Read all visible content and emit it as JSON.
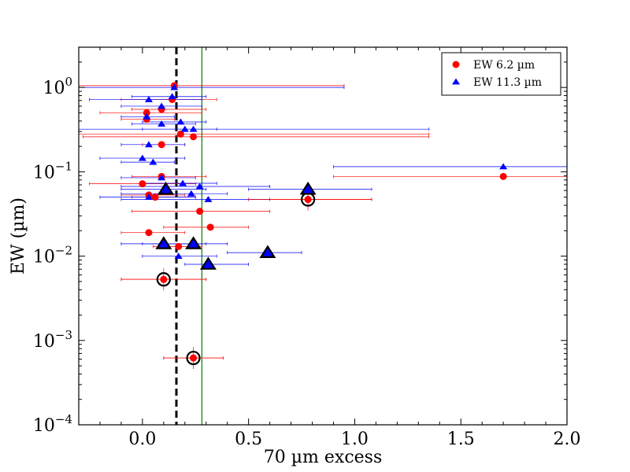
{
  "chart_data": {
    "type": "scatter",
    "title": "",
    "xlabel": "70 µm excess",
    "ylabel": "EW (µm)",
    "xlim": [
      -0.3,
      2.0
    ],
    "ylim": [
      0.0001,
      3.0
    ],
    "yscale": "log",
    "x_ticks": [
      "0.0",
      "0.5",
      "1.0",
      "1.5",
      "2.0"
    ],
    "x_tick_values": [
      0.0,
      0.5,
      1.0,
      1.5,
      2.0
    ],
    "y_ticks": [
      {
        "value": 0.0001,
        "base": "10",
        "exp": "−4"
      },
      {
        "value": 0.001,
        "base": "10",
        "exp": "−3"
      },
      {
        "value": 0.01,
        "base": "10",
        "exp": "−2"
      },
      {
        "value": 0.1,
        "base": "10",
        "exp": "−1"
      },
      {
        "value": 1,
        "base": "10",
        "exp": "0"
      }
    ],
    "vlines": [
      {
        "x": 0.16,
        "color": "#000000",
        "style": "dashed"
      },
      {
        "x": 0.28,
        "color": "#008000",
        "style": "solid"
      }
    ],
    "legend_position": "top-right",
    "series": [
      {
        "name": "EW 6.2 µm",
        "marker": "circle",
        "color": "#ff0000",
        "errcolor": "#ff0000",
        "points": [
          {
            "x": 0.15,
            "y": 1.05,
            "xlo": -0.3,
            "xhi": 0.95
          },
          {
            "x": 0.14,
            "y": 0.72,
            "xlo": -0.1,
            "xhi": 0.35
          },
          {
            "x": 0.02,
            "y": 0.5,
            "xlo": -0.2,
            "xhi": 0.28
          },
          {
            "x": 0.09,
            "y": 0.55,
            "xlo": -0.05,
            "xhi": 0.3
          },
          {
            "x": 0.02,
            "y": 0.42,
            "xlo": -0.1,
            "xhi": 0.15
          },
          {
            "x": 0.18,
            "y": 0.28,
            "xlo": -0.3,
            "xhi": 1.35
          },
          {
            "x": 0.24,
            "y": 0.26,
            "xlo": -0.28,
            "xhi": 1.35
          },
          {
            "x": 0.09,
            "y": 0.21,
            "xlo": 0.0,
            "xhi": 0.2
          },
          {
            "x": 0.09,
            "y": 0.088,
            "xlo": -0.05,
            "xhi": 0.3
          },
          {
            "x": 1.7,
            "y": 0.088,
            "xlo": 0.9,
            "xhi": 2.1
          },
          {
            "x": 0.0,
            "y": 0.072,
            "xlo": -0.25,
            "xhi": 0.25
          },
          {
            "x": 0.03,
            "y": 0.053,
            "xlo": -0.1,
            "xhi": 0.2
          },
          {
            "x": 0.06,
            "y": 0.05,
            "xlo": -0.05,
            "xhi": 0.25
          },
          {
            "x": 0.78,
            "y": 0.047,
            "xlo": 0.5,
            "xhi": 1.08
          },
          {
            "x": 0.27,
            "y": 0.034,
            "xlo": -0.05,
            "xhi": 0.6
          },
          {
            "x": 0.32,
            "y": 0.022,
            "xlo": 0.1,
            "xhi": 0.5
          },
          {
            "x": 0.03,
            "y": 0.019,
            "xlo": -0.1,
            "xhi": 0.2
          },
          {
            "x": 0.17,
            "y": 0.013,
            "xlo": 0.05,
            "xhi": 0.28
          },
          {
            "x": 0.1,
            "y": 0.0053,
            "xlo": -0.1,
            "xhi": 0.3
          },
          {
            "x": 0.24,
            "y": 0.00062,
            "xlo": 0.1,
            "xhi": 0.38
          }
        ]
      },
      {
        "name": "EW 11.3 µm",
        "marker": "triangle",
        "color": "#0000ff",
        "errcolor": "#0000ff",
        "points": [
          {
            "x": 0.15,
            "y": 1.0,
            "xlo": -0.3,
            "xhi": 0.95
          },
          {
            "x": 0.03,
            "y": 0.72,
            "xlo": -0.25,
            "xhi": 0.28
          },
          {
            "x": 0.14,
            "y": 0.78,
            "xlo": -0.05,
            "xhi": 0.3
          },
          {
            "x": 0.09,
            "y": 0.6,
            "xlo": -0.1,
            "xhi": 0.28
          },
          {
            "x": 0.02,
            "y": 0.45,
            "xlo": -0.1,
            "xhi": 0.15
          },
          {
            "x": 0.09,
            "y": 0.37,
            "xlo": -0.05,
            "xhi": 0.25
          },
          {
            "x": 0.18,
            "y": 0.39,
            "xlo": 0.0,
            "xhi": 0.3
          },
          {
            "x": 0.2,
            "y": 0.32,
            "xlo": 0.0,
            "xhi": 0.35
          },
          {
            "x": 0.24,
            "y": 0.32,
            "xlo": -0.3,
            "xhi": 1.35
          },
          {
            "x": 0.03,
            "y": 0.21,
            "xlo": -0.1,
            "xhi": 0.2
          },
          {
            "x": 0.0,
            "y": 0.145,
            "xlo": -0.2,
            "xhi": 0.2
          },
          {
            "x": 0.05,
            "y": 0.13,
            "xlo": -0.1,
            "xhi": 0.15
          },
          {
            "x": 1.7,
            "y": 0.115,
            "xlo": 0.9,
            "xhi": 2.1
          },
          {
            "x": 0.09,
            "y": 0.085,
            "xlo": -0.1,
            "xhi": 0.25
          },
          {
            "x": 0.19,
            "y": 0.073,
            "xlo": 0.0,
            "xhi": 0.35
          },
          {
            "x": 0.27,
            "y": 0.067,
            "xlo": -0.1,
            "xhi": 0.6
          },
          {
            "x": 0.23,
            "y": 0.055,
            "xlo": -0.1,
            "xhi": 0.4
          },
          {
            "x": 0.31,
            "y": 0.047,
            "xlo": -0.1,
            "xhi": 0.6
          },
          {
            "x": 0.03,
            "y": 0.05,
            "xlo": -0.2,
            "xhi": 0.25
          },
          {
            "x": 0.17,
            "y": 0.01,
            "xlo": 0.0,
            "xhi": 0.35
          }
        ]
      },
      {
        "name": "highlighted 6.2 µm",
        "marker": "circle-outlined",
        "color": "#ff0000",
        "errcolor": "#ff0000",
        "points": [
          {
            "x": 0.78,
            "y": 0.047,
            "xlo": 0.5,
            "xhi": 1.08
          },
          {
            "x": 0.1,
            "y": 0.0053,
            "xlo": -0.1,
            "xhi": 0.3
          },
          {
            "x": 0.24,
            "y": 0.00062,
            "xlo": 0.1,
            "xhi": 0.38
          }
        ]
      },
      {
        "name": "highlighted 11.3 µm",
        "marker": "triangle-outlined",
        "color": "#0000ff",
        "errcolor": "#0000ff",
        "points": [
          {
            "x": 0.11,
            "y": 0.062,
            "xlo": -0.1,
            "xhi": 0.3
          },
          {
            "x": 0.78,
            "y": 0.062,
            "xlo": 0.5,
            "xhi": 1.08
          },
          {
            "x": 0.1,
            "y": 0.014,
            "xlo": -0.1,
            "xhi": 0.3
          },
          {
            "x": 0.24,
            "y": 0.014,
            "xlo": 0.0,
            "xhi": 0.4
          },
          {
            "x": 0.31,
            "y": 0.008,
            "xlo": 0.2,
            "xhi": 0.5
          },
          {
            "x": 0.59,
            "y": 0.011,
            "xlo": 0.4,
            "xhi": 0.75
          }
        ]
      }
    ],
    "legend": [
      {
        "label": "EW 6.2 µm",
        "marker": "circle",
        "color": "#ff0000"
      },
      {
        "label": "EW 11.3 µm",
        "marker": "triangle",
        "color": "#0000ff"
      }
    ]
  }
}
